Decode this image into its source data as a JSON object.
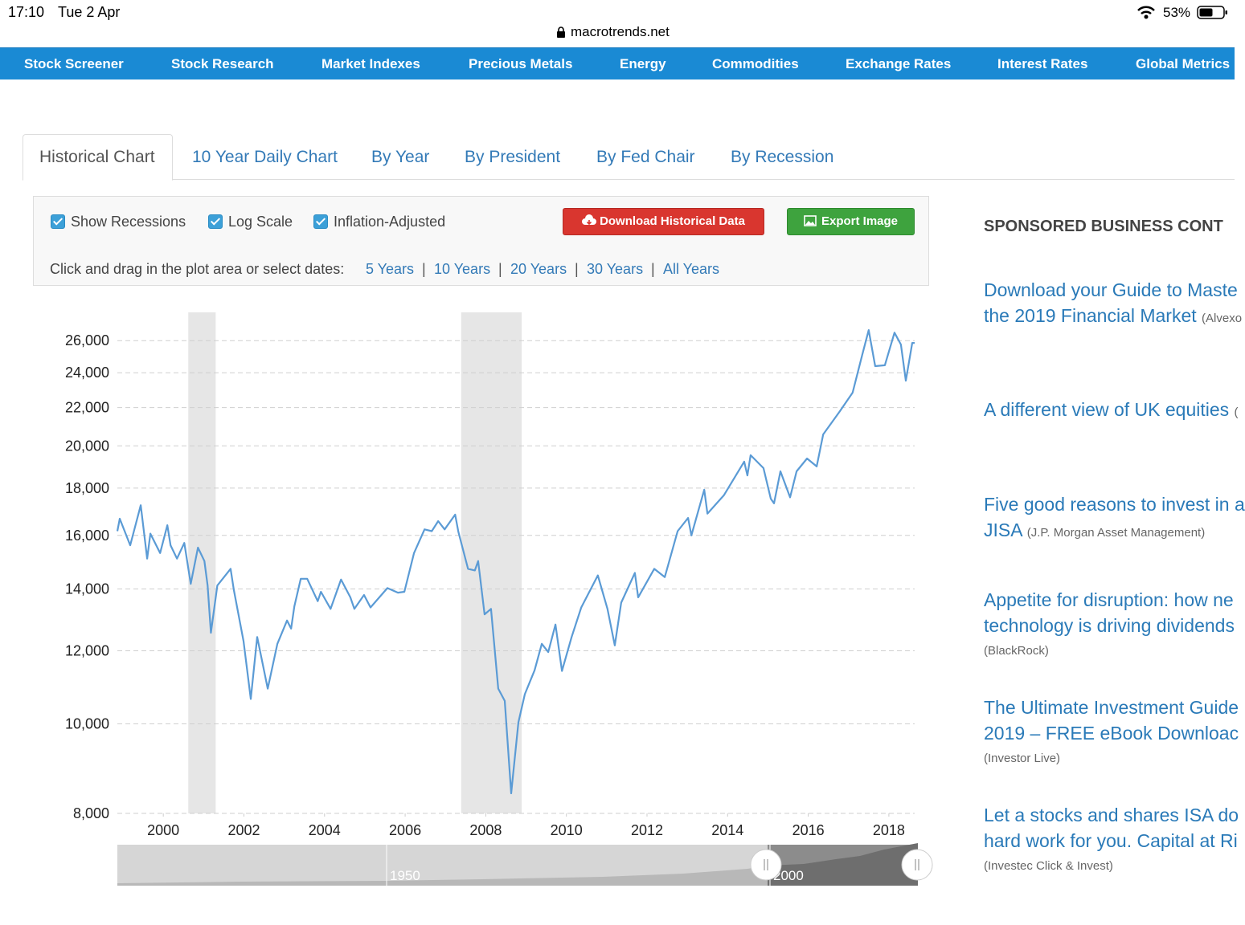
{
  "status_bar": {
    "time": "17:10",
    "date": "Tue 2 Apr",
    "battery": "53%",
    "url": "macrotrends.net"
  },
  "nav": {
    "items": [
      "Stock Screener",
      "Stock Research",
      "Market Indexes",
      "Precious Metals",
      "Energy",
      "Commodities",
      "Exchange Rates",
      "Interest Rates",
      "Global Metrics"
    ]
  },
  "tabs": {
    "items": [
      "Historical Chart",
      "10 Year Daily Chart",
      "By Year",
      "By President",
      "By Fed Chair",
      "By Recession"
    ]
  },
  "controls": {
    "options": [
      "Show Recessions",
      "Log Scale",
      "Inflation-Adjusted"
    ],
    "buttons": [
      "Download Historical Data",
      "Export Image"
    ],
    "prompt": "Click and drag in the plot area or select dates:",
    "ranges": [
      "5 Years",
      "10 Years",
      "20 Years",
      "30 Years",
      "All Years"
    ],
    "separator": "|"
  },
  "chart_data": {
    "type": "line",
    "color": "#5b9bd5",
    "log_scale": true,
    "grid": true,
    "recession_color": "#e6e6e6",
    "recessions": [
      {
        "start": 2000.62,
        "end": 2001.3
      },
      {
        "start": 2007.39,
        "end": 2008.89
      }
    ],
    "xlim": [
      1998.86,
      2018.64
    ],
    "xticks": [
      2000,
      2002,
      2004,
      2006,
      2008,
      2010,
      2012,
      2014,
      2016,
      2018
    ],
    "ylim": [
      8000,
      27900
    ],
    "yticks": [
      {
        "value": 8000,
        "label": "8,000"
      },
      {
        "value": 10000,
        "label": "10,000"
      },
      {
        "value": 12000,
        "label": "12,000"
      },
      {
        "value": 14000,
        "label": "14,000"
      },
      {
        "value": 16000,
        "label": "16,000"
      },
      {
        "value": 18000,
        "label": "18,000"
      },
      {
        "value": 20000,
        "label": "20,000"
      },
      {
        "value": 22000,
        "label": "22,000"
      },
      {
        "value": 24000,
        "label": "24,000"
      },
      {
        "value": 26000,
        "label": "26,000"
      }
    ],
    "x": [
      1998.86,
      1998.92,
      1999.18,
      1999.44,
      1999.6,
      1999.68,
      1999.92,
      2000.1,
      2000.18,
      2000.34,
      2000.52,
      2000.68,
      2000.86,
      2001.02,
      2001.1,
      2001.18,
      2001.34,
      2001.67,
      2001.75,
      2001.99,
      2002.17,
      2002.33,
      2002.59,
      2002.83,
      2003.07,
      2003.17,
      2003.25,
      2003.41,
      2003.57,
      2003.83,
      2003.91,
      2004.15,
      2004.41,
      2004.64,
      2004.74,
      2004.98,
      2005.14,
      2005.56,
      2005.82,
      2005.98,
      2006.22,
      2006.48,
      2006.66,
      2006.82,
      2006.98,
      2007.24,
      2007.32,
      2007.56,
      2007.73,
      2007.81,
      2007.97,
      2008.13,
      2008.31,
      2008.47,
      2008.63,
      2008.81,
      2008.97,
      2009.21,
      2009.39,
      2009.55,
      2009.73,
      2009.89,
      2010.13,
      2010.37,
      2010.78,
      2011.02,
      2011.2,
      2011.36,
      2011.7,
      2011.78,
      2012.18,
      2012.44,
      2012.76,
      2013.02,
      2013.1,
      2013.42,
      2013.5,
      2013.91,
      2014.41,
      2014.49,
      2014.57,
      2014.89,
      2015.07,
      2015.15,
      2015.31,
      2015.55,
      2015.71,
      2015.97,
      2016.21,
      2016.37,
      2016.78,
      2017.1,
      2017.34,
      2017.5,
      2017.66,
      2017.9,
      2018.14,
      2018.3,
      2018.42,
      2018.58,
      2018.64
    ],
    "values": [
      16170,
      16680,
      15610,
      17250,
      15100,
      16070,
      15310,
      16410,
      15610,
      15100,
      15700,
      14180,
      15520,
      15010,
      14120,
      12550,
      14120,
      14720,
      13970,
      12290,
      10640,
      12420,
      10920,
      12210,
      12940,
      12680,
      13400,
      14360,
      14360,
      13580,
      13900,
      13320,
      14330,
      13710,
      13320,
      13790,
      13370,
      14030,
      13870,
      13900,
      15310,
      16240,
      16170,
      16580,
      16240,
      16850,
      16140,
      14720,
      14660,
      15010,
      13140,
      13320,
      10920,
      10590,
      8410,
      10040,
      10770,
      11430,
      12210,
      11960,
      12810,
      11410,
      12420,
      13370,
      14480,
      13320,
      12160,
      13530,
      14570,
      13710,
      14720,
      14420,
      16170,
      16710,
      16000,
      17930,
      16890,
      17690,
      19230,
      18580,
      19540,
      18920,
      17530,
      17330,
      18770,
      17590,
      18770,
      19380,
      19000,
      20580,
      21790,
      22840,
      25100,
      26690,
      24400,
      24450,
      26520,
      25750,
      23530,
      25850,
      25850
    ]
  },
  "navigator": {
    "labels": [
      "1950",
      "2000"
    ]
  },
  "sidebar": {
    "heading": "SPONSORED BUSINESS CONT",
    "ads": [
      {
        "lines": [
          "Download your Guide to Maste",
          "the 2019 Financial Market"
        ],
        "source": "(Alvexo"
      },
      {
        "lines": [
          "A different view of UK equities"
        ],
        "source": "("
      },
      {
        "lines": [
          "Five good reasons to invest in a",
          "JISA"
        ],
        "source": "(J.P. Morgan Asset Management)"
      },
      {
        "lines": [
          "Appetite for disruption: how ne",
          "technology is driving dividends"
        ],
        "source": "(BlackRock)"
      },
      {
        "lines": [
          "The Ultimate Investment Guide",
          "2019 – FREE eBook Downloac"
        ],
        "source": "(Investor Live)"
      },
      {
        "lines": [
          "Let a stocks and shares ISA do",
          "hard work for you. Capital at Ri"
        ],
        "source": "(Investec Click & Invest)"
      }
    ]
  }
}
